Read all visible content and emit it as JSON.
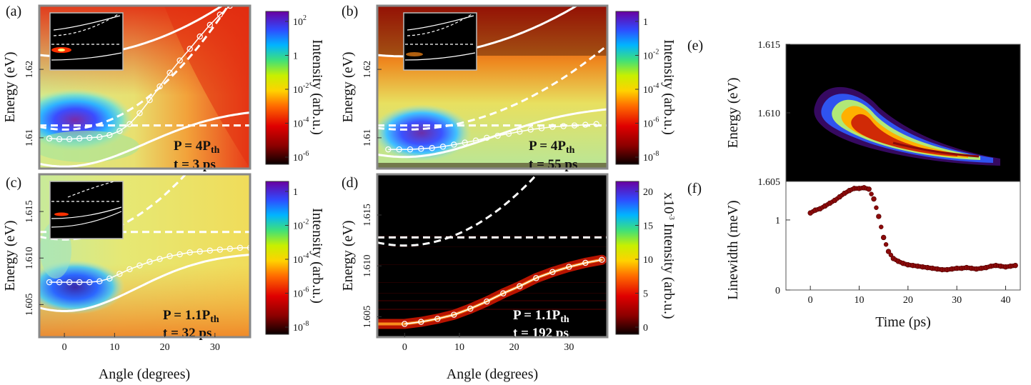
{
  "figure": {
    "colors": {
      "frame": "#888888",
      "axis": "#111111",
      "curve": "#ffffff",
      "marker": "#8b0a0a",
      "text_light": "#ffffff",
      "text_dark": "#000000"
    }
  },
  "chart_data": [
    {
      "panel": "(a)",
      "type": "heatmap",
      "xlabel": "",
      "ylabel": "Energy (eV)",
      "xlim": [
        -5,
        37
      ],
      "ylim": [
        1.6055,
        1.6293
      ],
      "yticks": [
        1.61,
        1.62
      ],
      "ytick_labels": [
        "1.61",
        "1.62"
      ],
      "colorbar": {
        "label": "Intensity (arb.u.)",
        "scale": "log",
        "ticks": [
          "10^2",
          "1",
          "10^-2",
          "10^-4",
          "10^-6"
        ]
      },
      "annotations": [
        {
          "lines": [
            {
              "text": "P = 4P",
              "sub": "th"
            },
            {
              "text": "t  = 3 ps",
              "sub": ""
            }
          ],
          "color": "#000000"
        }
      ],
      "lower_polariton": {
        "x": [
          -3,
          -1,
          1,
          3,
          5,
          7,
          9,
          11,
          13,
          15,
          17,
          19,
          21,
          23,
          25,
          27,
          29,
          31,
          33
        ],
        "y": [
          1.6099,
          1.6098,
          1.6098,
          1.6099,
          1.61,
          1.6101,
          1.6104,
          1.611,
          1.612,
          1.6136,
          1.6155,
          1.6175,
          1.6195,
          1.6213,
          1.623,
          1.6248,
          1.6265,
          1.628,
          1.6293
        ]
      },
      "cavity_mode_energy_at_0": 1.6112,
      "exciton_energy": 1.6118,
      "upper_branch_energy_at_0": 1.6219,
      "lower_branch_energy_at_0": 1.6058,
      "inset": true
    },
    {
      "panel": "(b)",
      "type": "heatmap",
      "xlabel": "",
      "ylabel": "Energy (eV)",
      "xlim": [
        -5,
        37
      ],
      "ylim": [
        1.6055,
        1.6293
      ],
      "yticks": [
        1.61,
        1.62
      ],
      "ytick_labels": [
        "1.61",
        "1.62"
      ],
      "colorbar": {
        "label": "Intensity (arb.u.)",
        "scale": "log",
        "ticks": [
          "1",
          "10^-2",
          "10^-4",
          "10^-6",
          "10^-8"
        ]
      },
      "annotations": [
        {
          "lines": [
            {
              "text": "P = 4P",
              "sub": "th"
            },
            {
              "text": "t  = 55 ps",
              "sub": ""
            }
          ],
          "color": "#000000"
        }
      ],
      "lower_polariton": {
        "x": [
          -3,
          -1,
          1,
          3,
          5,
          7,
          9,
          11,
          13,
          15,
          17,
          19,
          21,
          23,
          25,
          27,
          29,
          31,
          33,
          35
        ],
        "y": [
          1.6083,
          1.6083,
          1.6083,
          1.6084,
          1.6085,
          1.6087,
          1.609,
          1.6093,
          1.6096,
          1.61,
          1.6103,
          1.6106,
          1.6109,
          1.6112,
          1.6114,
          1.6116,
          1.6117,
          1.6118,
          1.6119,
          1.612
        ]
      },
      "cavity_mode_energy_at_0": 1.6112,
      "exciton_energy": 1.6118,
      "upper_branch_energy_at_0": 1.6219,
      "lower_branch_energy_at_0": 1.6072,
      "inset": true
    },
    {
      "panel": "(c)",
      "type": "heatmap",
      "xlabel": "Angle (degrees)",
      "ylabel": "Energy (eV)",
      "xlim": [
        -5,
        37
      ],
      "ylim": [
        1.6015,
        1.619
      ],
      "xticks": [
        0,
        10,
        20,
        30
      ],
      "yticks": [
        1.605,
        1.61,
        1.615
      ],
      "ytick_labels": [
        "1.605",
        "1.610",
        "1.615"
      ],
      "colorbar": {
        "label": "Intensity (arb.u.)",
        "scale": "log",
        "ticks": [
          "1",
          "10^-2",
          "10^-4",
          "10^-6",
          "10^-8"
        ]
      },
      "annotations": [
        {
          "lines": [
            {
              "text": "P = 1.1P",
              "sub": "th"
            },
            {
              "text": "t  = 32 ps",
              "sub": ""
            }
          ],
          "color": "#000000"
        }
      ],
      "lower_polariton": {
        "x": [
          -3,
          -1,
          1,
          3,
          5,
          7,
          9,
          11,
          13,
          15,
          17,
          19,
          21,
          23,
          25,
          27,
          29,
          31,
          33,
          35,
          37
        ],
        "y": [
          1.6074,
          1.6074,
          1.6074,
          1.6074,
          1.6074,
          1.6075,
          1.6078,
          1.6083,
          1.6088,
          1.6092,
          1.6096,
          1.6099,
          1.6102,
          1.6104,
          1.6106,
          1.6107,
          1.6108,
          1.6109,
          1.611,
          1.6111,
          1.6111
        ]
      },
      "cavity_mode_energy_at_0": 1.612,
      "exciton_energy": 1.6128,
      "lower_branch_energy_at_0": 1.6043,
      "inset": true
    },
    {
      "panel": "(d)",
      "type": "heatmap",
      "xlabel": "Angle (degrees)",
      "ylabel": "Energy (eV)",
      "xlim": [
        -5,
        37
      ],
      "ylim": [
        1.603,
        1.619
      ],
      "xticks": [
        0,
        10,
        20,
        30
      ],
      "yticks": [
        1.605,
        1.61,
        1.615
      ],
      "ytick_labels": [
        "1.605",
        "1.610",
        "1.615"
      ],
      "colorbar": {
        "label": "x10^-3 Intensity (arb.u.)",
        "scale": "linear",
        "ticks": [
          "20",
          "15",
          "10",
          "5",
          "0"
        ]
      },
      "annotations": [
        {
          "lines": [
            {
              "text": "P = 1.1P",
              "sub": "th"
            },
            {
              "text": "t  = 192 ps",
              "sub": ""
            }
          ],
          "color": "#ffffff"
        }
      ],
      "lower_polariton": {
        "x": [
          0,
          3,
          6,
          9,
          12,
          15,
          18,
          21,
          24,
          27,
          30,
          33,
          36
        ],
        "y": [
          1.6043,
          1.6045,
          1.6048,
          1.6052,
          1.6058,
          1.6065,
          1.6073,
          1.608,
          1.6088,
          1.6094,
          1.6099,
          1.6103,
          1.6106
        ]
      },
      "cavity_mode_energy_at_0": 1.612,
      "exciton_energy": 1.6128,
      "inset": false
    },
    {
      "panel": "(e)",
      "type": "heatmap",
      "xlabel": "",
      "ylabel": "Energy (eV)",
      "xlim": [
        -5,
        43
      ],
      "ylim": [
        1.605,
        1.615
      ],
      "yticks": [
        1.605,
        1.61,
        1.615
      ],
      "ytick_labels": [
        "1.605",
        "1.610",
        "1.615"
      ],
      "emission_ridge": {
        "time_ps": [
          0,
          4,
          8,
          12,
          16,
          20,
          24,
          28,
          32,
          36,
          40
        ],
        "energy_eV": [
          1.6104,
          1.6093,
          1.6083,
          1.6075,
          1.6069,
          1.6065,
          1.6062,
          1.606,
          1.6058,
          1.6057,
          1.6056
        ]
      }
    },
    {
      "panel": "(f)",
      "type": "scatter",
      "xlabel": "Time (ps)",
      "ylabel": "Linewidth (meV)",
      "xlim": [
        -5,
        43
      ],
      "ylim": [
        0,
        1.55
      ],
      "xticks": [
        0,
        10,
        20,
        30,
        40
      ],
      "yticks": [
        0,
        1
      ],
      "x": [
        0,
        1,
        2,
        3,
        4,
        5,
        6,
        7,
        8,
        9,
        10,
        11,
        12,
        13,
        14,
        15,
        16,
        17,
        18,
        19,
        20,
        21,
        22,
        23,
        24,
        25,
        26,
        27,
        28,
        29,
        30,
        31,
        32,
        33,
        34,
        35,
        36,
        37,
        38,
        39,
        40,
        41,
        42
      ],
      "y": [
        1.1,
        1.14,
        1.16,
        1.2,
        1.24,
        1.28,
        1.33,
        1.38,
        1.42,
        1.45,
        1.45,
        1.46,
        1.44,
        1.3,
        1.05,
        0.75,
        0.55,
        0.45,
        0.41,
        0.38,
        0.36,
        0.35,
        0.34,
        0.33,
        0.32,
        0.31,
        0.3,
        0.29,
        0.29,
        0.3,
        0.31,
        0.31,
        0.32,
        0.31,
        0.3,
        0.31,
        0.32,
        0.34,
        0.35,
        0.34,
        0.33,
        0.34,
        0.35
      ]
    }
  ]
}
